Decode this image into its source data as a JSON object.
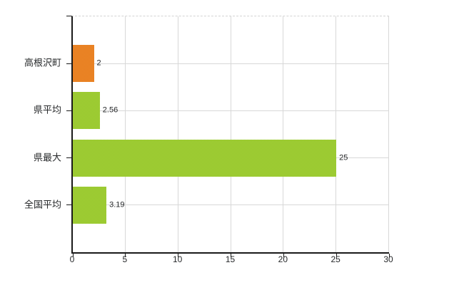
{
  "chart_data": {
    "type": "bar",
    "orientation": "horizontal",
    "title": "",
    "categories": [
      "高根沢町",
      "県平均",
      "県最大",
      "全国平均"
    ],
    "values": [
      2,
      2.56,
      25,
      3.19
    ],
    "value_labels": [
      "2",
      "2.56",
      "25",
      "3.19"
    ],
    "bar_color_names": [
      "orange",
      "green",
      "green",
      "green"
    ],
    "xlim": [
      0,
      30
    ],
    "x_ticks": [
      "0",
      "5",
      "10",
      "15",
      "20",
      "25",
      "30"
    ],
    "x_tick_values": [
      0,
      5,
      10,
      15,
      20,
      25,
      30
    ],
    "grid": true,
    "legend": "none"
  },
  "colors": {
    "orange_light": "#f29030",
    "orange_dark": "#e07418",
    "green_light": "#a8d43a",
    "green_dark": "#90c12a",
    "axis": "#1a1a1a",
    "gridline": "#d8d8d8",
    "label_text": "#26282a",
    "background": "#ffffff"
  }
}
